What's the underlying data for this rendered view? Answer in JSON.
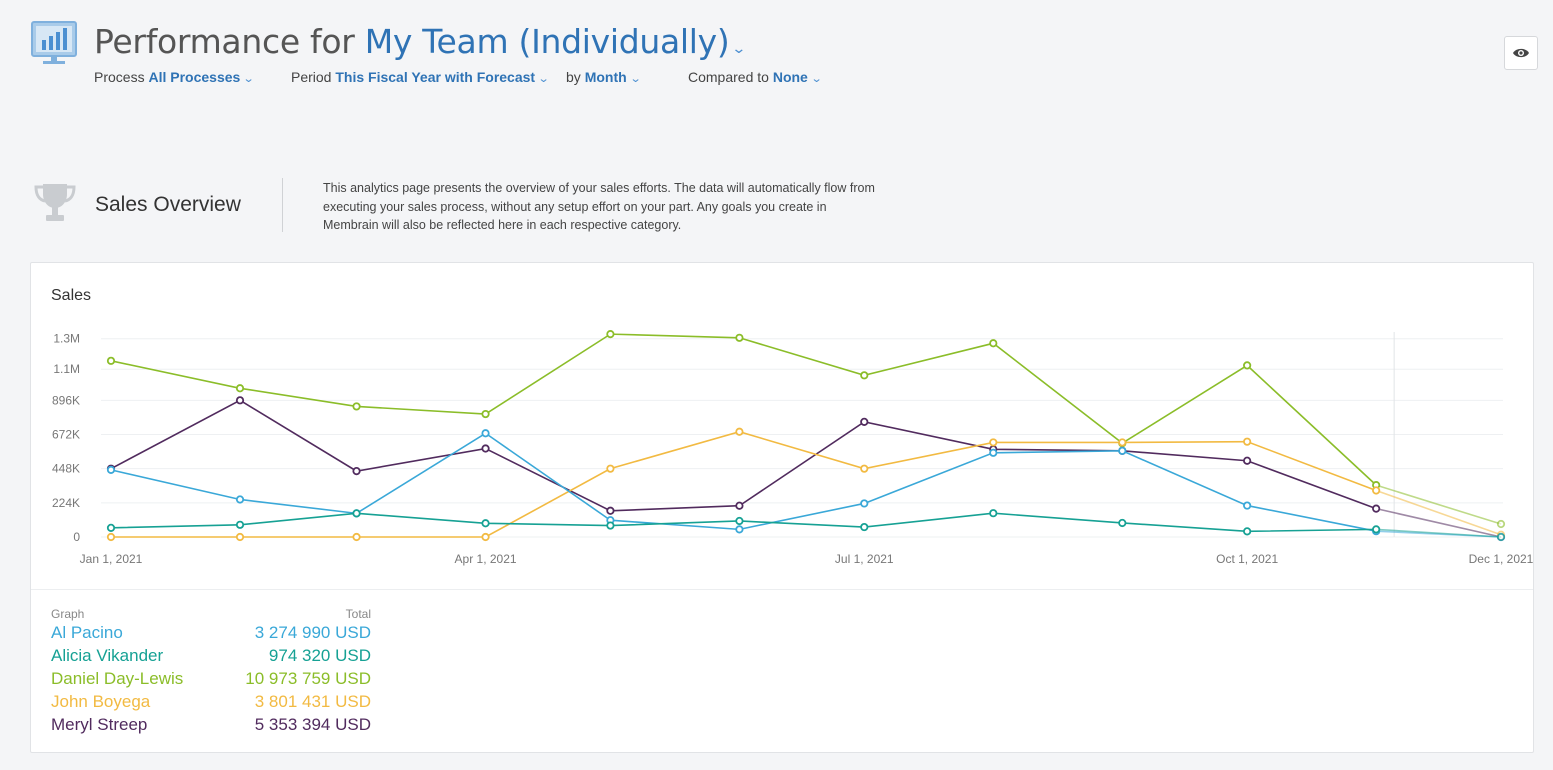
{
  "header": {
    "title_prefix": "Performance for",
    "team_label": "My Team (Individually)",
    "filters": {
      "process_label": "Process",
      "process_value": "All Processes",
      "period_label": "Period",
      "period_value": "This Fiscal Year with Forecast",
      "by_label": "by",
      "by_value": "Month",
      "compared_label": "Compared to",
      "compared_value": "None"
    },
    "icons": {
      "app": "monitor-chart-icon",
      "visibility": "eye-icon",
      "dropdown": "chevron-down-icon"
    }
  },
  "section": {
    "title": "Sales Overview",
    "icon": "trophy-icon",
    "description": "This analytics page presents the overview of your sales efforts. The data will automatically flow from executing your sales process, without any setup effort on your part. Any goals you create in Membrain will also be reflected here in each respective category."
  },
  "card": {
    "title": "Sales",
    "legend_header": {
      "graph": "Graph",
      "total": "Total"
    },
    "legend": [
      {
        "name": "Al Pacino",
        "total": "3 274 990 USD",
        "color": "#3aa8d8"
      },
      {
        "name": "Alicia Vikander",
        "total": "974 320 USD",
        "color": "#16a194"
      },
      {
        "name": "Daniel Day-Lewis",
        "total": "10 973 759 USD",
        "color": "#8bbd29"
      },
      {
        "name": "John Boyega",
        "total": "3 801 431 USD",
        "color": "#f2ba42"
      },
      {
        "name": "Meryl Streep",
        "total": "5 353 394 USD",
        "color": "#512b5e"
      }
    ]
  },
  "chart_data": {
    "type": "line",
    "title": "Sales",
    "x": [
      "2021-01-01",
      "2021-02-01",
      "2021-03-01",
      "2021-04-01",
      "2021-05-01",
      "2021-06-01",
      "2021-07-01",
      "2021-08-01",
      "2021-09-01",
      "2021-10-01",
      "2021-11-01",
      "2021-12-01"
    ],
    "x_tick_labels": [
      "Jan 1, 2021",
      "Apr 1, 2021",
      "Jul 1, 2021",
      "Oct 1, 2021",
      "Dec 1, 2021"
    ],
    "x_tick_dates": [
      "2021-01-01",
      "2021-04-01",
      "2021-07-01",
      "2021-10-01",
      "2021-12-01"
    ],
    "y_ticks": [
      0,
      224000,
      448000,
      672000,
      896000,
      1100000,
      1300000
    ],
    "y_tick_labels": [
      "0",
      "224K",
      "448K",
      "672K",
      "896K",
      "1.1M",
      "1.3M"
    ],
    "ylim": [
      0,
      1344000
    ],
    "forecast_from": "2021-11-01",
    "grid": true,
    "series": [
      {
        "name": "Daniel Day-Lewis",
        "color": "#8bbd29",
        "values": [
          1155000,
          975000,
          856000,
          806000,
          1330000,
          1306000,
          1060000,
          1270000,
          615000,
          1125000,
          340000,
          85000
        ]
      },
      {
        "name": "Meryl Streep",
        "color": "#512b5e",
        "values": [
          448000,
          896000,
          432000,
          580000,
          172000,
          205000,
          755000,
          575000,
          565000,
          500000,
          186000,
          0
        ]
      },
      {
        "name": "John Boyega",
        "color": "#f2ba42",
        "values": [
          0,
          0,
          0,
          0,
          448000,
          690000,
          448000,
          620000,
          620000,
          625000,
          305000,
          15000
        ]
      },
      {
        "name": "Al Pacino",
        "color": "#3aa8d8",
        "values": [
          440000,
          246000,
          155000,
          680000,
          110000,
          50000,
          220000,
          552000,
          565000,
          206000,
          38000,
          0
        ]
      },
      {
        "name": "Alicia Vikander",
        "color": "#16a194",
        "values": [
          60000,
          80000,
          155000,
          90000,
          75000,
          105000,
          65000,
          156000,
          92000,
          37000,
          50000,
          0
        ]
      }
    ]
  }
}
